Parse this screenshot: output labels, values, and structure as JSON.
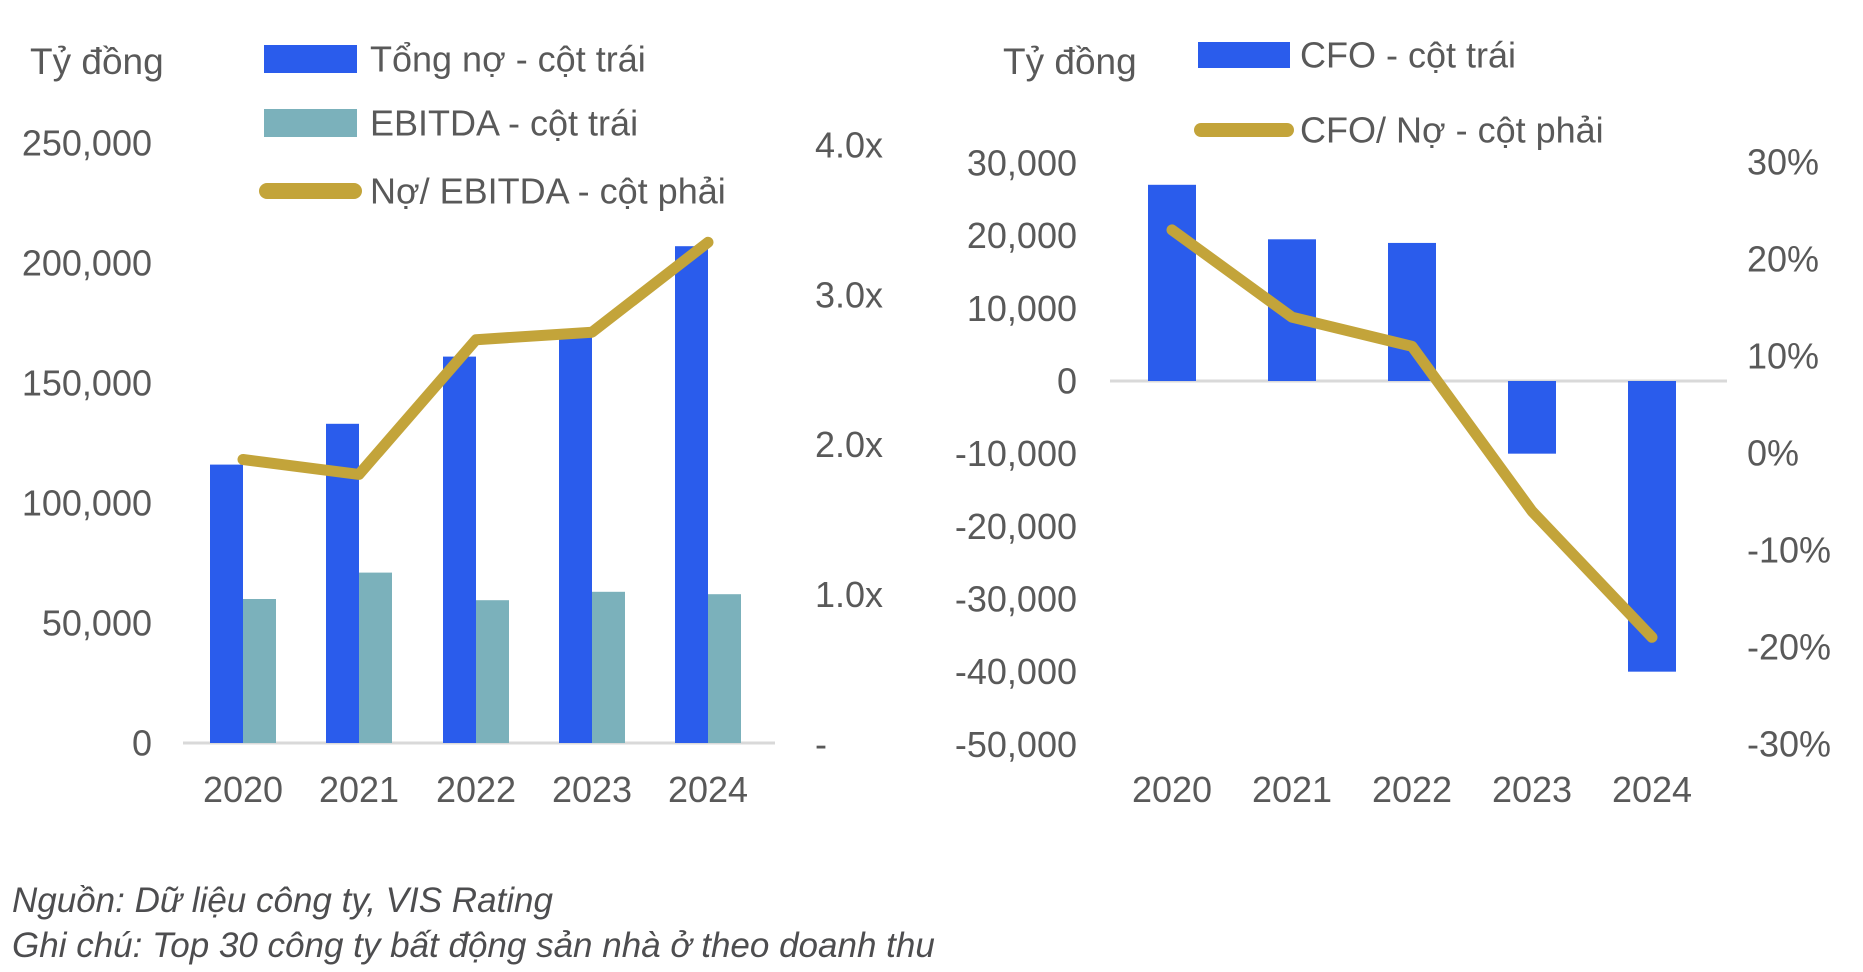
{
  "page": {
    "background": "#ffffff"
  },
  "colors": {
    "text": "#595959",
    "footer_text": "#4d4d4f",
    "axis_line": "#d9d9d9",
    "blue": "#2A5CEC",
    "teal": "#7BB1BB",
    "gold": "#C3A43A"
  },
  "footer": {
    "source": "Nguồn: Dữ liệu công ty, VIS Rating",
    "note": "Ghi chú: Top 30 công ty bất động sản nhà ở theo doanh thu"
  },
  "chart_data": [
    {
      "type": "bar",
      "title": "",
      "unit_label": "Tỷ đồng",
      "categories": [
        "2020",
        "2021",
        "2022",
        "2023",
        "2024"
      ],
      "series": [
        {
          "name": "Tổng nợ - cột trái",
          "kind": "bar",
          "axis": "left",
          "color": "#2A5CEC",
          "values": [
            116000,
            133000,
            161000,
            169000,
            207000
          ]
        },
        {
          "name": "EBITDA - cột trái",
          "kind": "bar",
          "axis": "left",
          "color": "#7BB1BB",
          "values": [
            60000,
            71000,
            59500,
            63000,
            62000
          ]
        },
        {
          "name": "Nợ/ EBITDA - cột phải",
          "kind": "line",
          "axis": "right",
          "color": "#C3A43A",
          "values": [
            1.9,
            1.8,
            2.7,
            2.75,
            3.35
          ]
        }
      ],
      "left_axis": {
        "min": 0,
        "max": 250000,
        "step": 50000,
        "format": "number"
      },
      "right_axis": {
        "min": 0,
        "max": 4,
        "step": 1,
        "format": "ratio_x",
        "zero_label": "-"
      },
      "legend_position": "top",
      "grid": false
    },
    {
      "type": "bar",
      "title": "",
      "unit_label": "Tỷ đồng",
      "categories": [
        "2020",
        "2021",
        "2022",
        "2023",
        "2024"
      ],
      "series": [
        {
          "name": "CFO - cột trái",
          "kind": "bar",
          "axis": "left",
          "color": "#2A5CEC",
          "values": [
            27000,
            19500,
            19000,
            -10000,
            -40000
          ]
        },
        {
          "name": "CFO/ Nợ - cột phải",
          "kind": "line",
          "axis": "right",
          "color": "#C3A43A",
          "values": [
            23,
            14,
            11,
            -6,
            -19
          ]
        }
      ],
      "left_axis": {
        "min": -50000,
        "max": 30000,
        "step": 10000,
        "format": "number"
      },
      "right_axis": {
        "min": -30,
        "max": 30,
        "step": 10,
        "format": "percent"
      },
      "legend_position": "top",
      "grid": false
    }
  ]
}
